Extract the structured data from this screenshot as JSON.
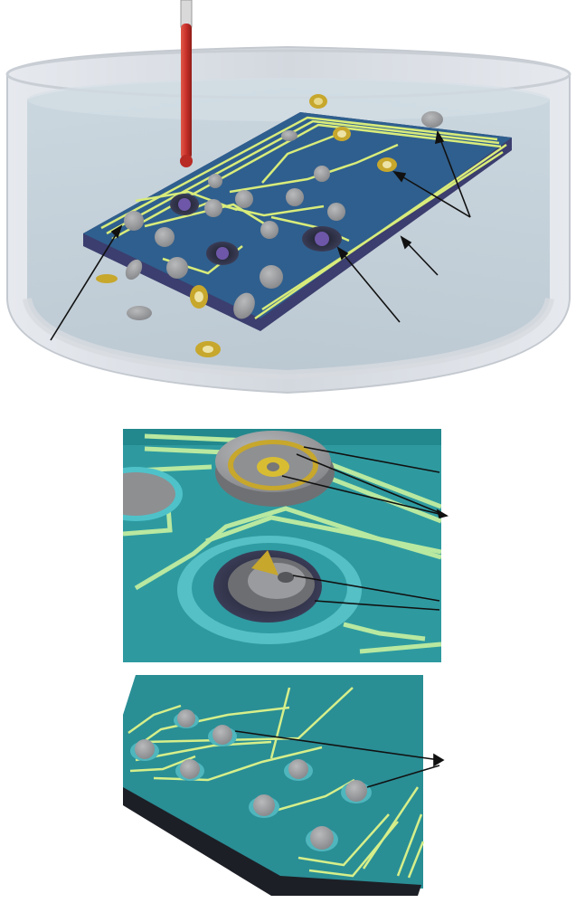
{
  "figure": {
    "panels": [
      {
        "id": "tank-overview"
      },
      {
        "id": "electrode-closeup"
      },
      {
        "id": "assembled-array"
      }
    ],
    "colors": {
      "substrate_top": "#2f5f8e",
      "substrate_edge": "#3b3e6e",
      "trace": "#d9ec7a",
      "closeup_substrate": "#2e9aa0",
      "closeup_substrate_dark": "#22888d",
      "disc_grey": "#8f9092",
      "gold_ring": "#c7a72c",
      "thermometer": "#c8302a",
      "leader_line": "#111111"
    },
    "labels": []
  }
}
